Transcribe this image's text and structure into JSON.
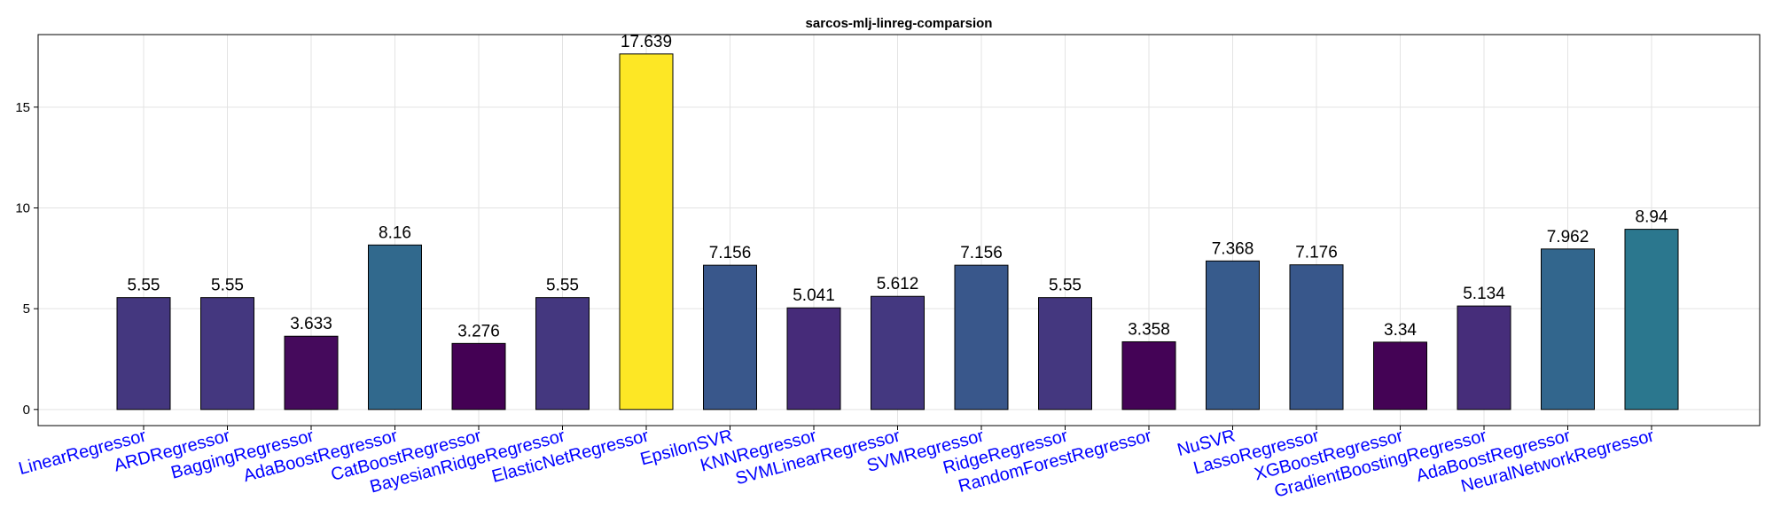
{
  "chart_data": {
    "type": "bar",
    "title": "sarcos-mlj-linreg-comparsion",
    "xlabel": "",
    "ylabel": "",
    "ylim": [
      -0.8,
      18.6
    ],
    "yticks": [
      0,
      5,
      10,
      15
    ],
    "grid": true,
    "categories": [
      "LinearRegressor",
      "ARDRegressor",
      "BaggingRegressor",
      "AdaBoostRegressor",
      "CatBoostRegressor",
      "BayesianRidgeRegressor",
      "ElasticNetRegressor",
      "EpsilonSVR",
      "KNNRegressor",
      "SVMLinearRegressor",
      "SVMRegressor",
      "RidgeRegressor",
      "RandomForestRegressor",
      "NuSVR",
      "LassoRegressor",
      "XGBoostRegressor",
      "GradientBoostingRegressor",
      "AdaBoostRegressor",
      "NeuralNetworkRegressor"
    ],
    "values": [
      5.55,
      5.55,
      3.633,
      8.16,
      3.276,
      5.55,
      17.639,
      7.156,
      5.041,
      5.612,
      7.156,
      5.55,
      3.358,
      7.368,
      7.176,
      3.34,
      5.134,
      7.962,
      8.94
    ],
    "labels": [
      "5.55",
      "5.55",
      "3.633",
      "8.16",
      "3.276",
      "5.55",
      "17.639",
      "7.156",
      "5.041",
      "5.612",
      "7.156",
      "5.55",
      "3.358",
      "7.368",
      "7.176",
      "3.34",
      "5.134",
      "7.962",
      "8.94"
    ],
    "colormap": "viridis",
    "tick_label_color": "#0000ff",
    "bar_edge_color": "#000000"
  }
}
